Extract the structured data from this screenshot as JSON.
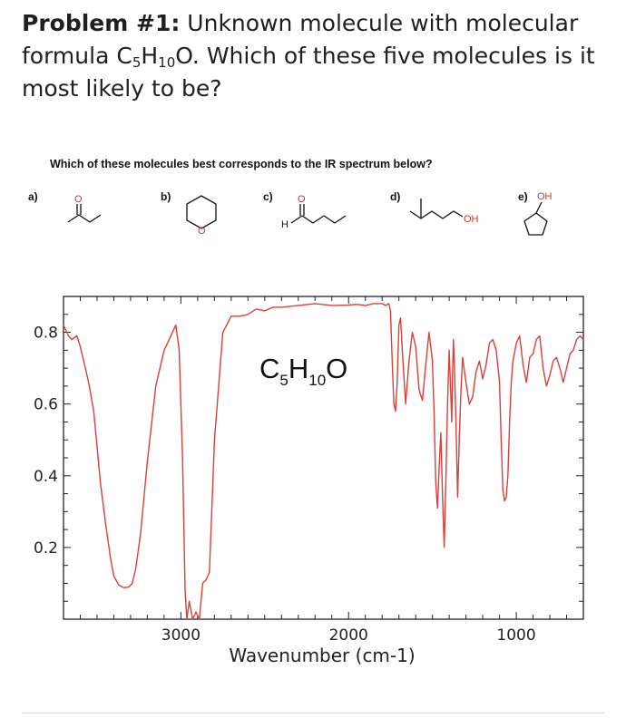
{
  "problem": {
    "heading": "Problem #1:",
    "text_before": "Unknown molecule with molecular formula C",
    "sub_c": "5",
    "mid_h": "H",
    "sub_h": "10",
    "text_after": "O. Which of these five molecules is it most likely to be?"
  },
  "question": "Which of these molecules best corresponds to the IR spectrum below?",
  "molecules": [
    {
      "label": "a)",
      "atoms": [
        "O"
      ]
    },
    {
      "label": "b)",
      "atoms": [
        "O"
      ]
    },
    {
      "label": "c)",
      "atoms": [
        "O",
        "H"
      ]
    },
    {
      "label": "d)",
      "atoms": [
        "OH"
      ]
    },
    {
      "label": "e)",
      "atoms": [
        "OH"
      ]
    }
  ],
  "chart_data": {
    "type": "line",
    "xlabel": "Wavenumber (cm-1)",
    "ylabel": "",
    "annotation": {
      "main1": "C",
      "sub1": "5",
      "main2": "H",
      "sub2": "10",
      "main3": "O"
    },
    "xlim": [
      3700,
      600
    ],
    "ylim": [
      0.0,
      0.9
    ],
    "xticks": [
      3000,
      2000,
      1000
    ],
    "yticks": [
      0.2,
      0.4,
      0.6,
      0.8
    ],
    "ytick_labels": [
      "0.2",
      "0.4",
      "0.6",
      "0.8"
    ],
    "xtick_labels": [
      "3000",
      "2000",
      "1000"
    ],
    "grid": false,
    "colors": {
      "line": "#d9403a",
      "axis": "#222222"
    },
    "series": [
      {
        "x": [
          3700,
          3670,
          3650,
          3620,
          3600,
          3580,
          3550,
          3520,
          3500,
          3480,
          3450,
          3420,
          3400,
          3370,
          3340,
          3310,
          3290,
          3270,
          3240,
          3200,
          3150,
          3100,
          3060,
          3030,
          3010,
          2990,
          2975,
          2965,
          2950,
          2930,
          2910,
          2890,
          2870,
          2850,
          2830,
          2800,
          2750,
          2700,
          2650,
          2600,
          2550,
          2500,
          2450,
          2400,
          2300,
          2200,
          2100,
          2000,
          1950,
          1900,
          1850,
          1800,
          1780,
          1760,
          1750,
          1740,
          1730,
          1720,
          1710,
          1700,
          1690,
          1680,
          1660,
          1640,
          1620,
          1600,
          1580,
          1560,
          1540,
          1520,
          1500,
          1490,
          1480,
          1470,
          1460,
          1450,
          1440,
          1430,
          1420,
          1410,
          1400,
          1390,
          1385,
          1380,
          1375,
          1370,
          1360,
          1350,
          1340,
          1330,
          1320,
          1300,
          1280,
          1260,
          1240,
          1220,
          1200,
          1180,
          1160,
          1140,
          1120,
          1100,
          1090,
          1080,
          1070,
          1060,
          1050,
          1040,
          1030,
          1020,
          1000,
          980,
          960,
          940,
          920,
          900,
          880,
          860,
          840,
          820,
          800,
          780,
          760,
          740,
          720,
          700,
          680,
          660,
          640,
          620,
          600
        ],
        "y": [
          0.82,
          0.79,
          0.78,
          0.79,
          0.76,
          0.72,
          0.66,
          0.58,
          0.48,
          0.38,
          0.27,
          0.17,
          0.12,
          0.095,
          0.088,
          0.09,
          0.1,
          0.14,
          0.24,
          0.44,
          0.65,
          0.75,
          0.79,
          0.82,
          0.75,
          0.45,
          0.08,
          0.0,
          0.05,
          0.0,
          0.02,
          0.0,
          0.1,
          0.11,
          0.13,
          0.5,
          0.8,
          0.845,
          0.845,
          0.85,
          0.865,
          0.86,
          0.87,
          0.87,
          0.875,
          0.88,
          0.875,
          0.876,
          0.878,
          0.875,
          0.88,
          0.88,
          0.875,
          0.88,
          0.86,
          0.72,
          0.6,
          0.58,
          0.66,
          0.82,
          0.84,
          0.75,
          0.6,
          0.72,
          0.8,
          0.76,
          0.64,
          0.61,
          0.71,
          0.8,
          0.72,
          0.57,
          0.38,
          0.31,
          0.42,
          0.52,
          0.35,
          0.2,
          0.38,
          0.6,
          0.75,
          0.62,
          0.55,
          0.68,
          0.78,
          0.72,
          0.56,
          0.34,
          0.5,
          0.64,
          0.73,
          0.66,
          0.6,
          0.62,
          0.69,
          0.72,
          0.67,
          0.71,
          0.77,
          0.78,
          0.75,
          0.66,
          0.5,
          0.36,
          0.33,
          0.34,
          0.4,
          0.55,
          0.66,
          0.72,
          0.77,
          0.79,
          0.71,
          0.66,
          0.73,
          0.74,
          0.78,
          0.79,
          0.7,
          0.65,
          0.68,
          0.72,
          0.73,
          0.7,
          0.66,
          0.7,
          0.74,
          0.75,
          0.78,
          0.79,
          0.78
        ]
      }
    ]
  }
}
